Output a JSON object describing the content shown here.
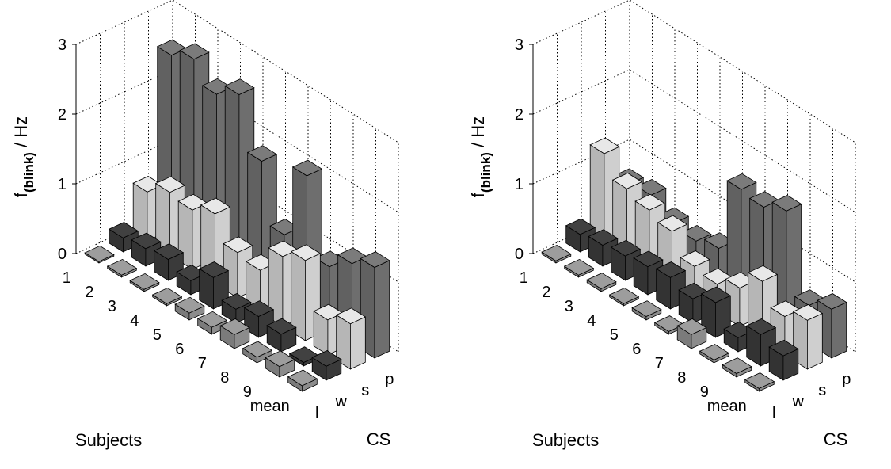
{
  "chart_data": [
    {
      "type": "bar3d",
      "zlabel_main": "f",
      "zlabel_sub": "(blink)",
      "zlabel_unit": " / Hz",
      "xlabel": "Subjects",
      "ylabel": "CS",
      "subjects": [
        "1",
        "2",
        "3",
        "4",
        "5",
        "6",
        "7",
        "8",
        "9",
        "mean"
      ],
      "zlim": [
        0,
        3
      ],
      "zticks": [
        "0",
        "1",
        "2",
        "3"
      ],
      "grid": true,
      "series": [
        {
          "name": "l",
          "color": "#8c8c8c",
          "values": [
            0.02,
            0.03,
            0.03,
            0.03,
            0.1,
            0.1,
            0.2,
            0.08,
            0.15,
            0.08
          ]
        },
        {
          "name": "w",
          "color": "#3a3a3a",
          "values": [
            0.2,
            0.25,
            0.3,
            0.2,
            0.45,
            0.2,
            0.3,
            0.25,
            0.05,
            0.2
          ]
        },
        {
          "name": "s",
          "color": "#cfcfcf",
          "values": [
            0.7,
            0.9,
            0.85,
            1.0,
            0.65,
            0.6,
            1.0,
            1.15,
            0.5,
            0.65
          ]
        },
        {
          "name": "p",
          "color": "#6e6e6e",
          "values": [
            2.5,
            2.65,
            2.35,
            2.55,
            1.8,
            0.95,
            2.0,
            0.9,
            1.15,
            1.3
          ]
        }
      ]
    },
    {
      "type": "bar3d",
      "zlabel_main": "f",
      "zlabel_sub": "(blink)",
      "zlabel_unit": " / Hz",
      "xlabel": "Subjects",
      "ylabel": "CS",
      "subjects": [
        "1",
        "2",
        "3",
        "4",
        "5",
        "6",
        "7",
        "8",
        "9",
        "mean"
      ],
      "zlim": [
        0,
        3
      ],
      "zticks": [
        "0",
        "1",
        "2",
        "3"
      ],
      "grid": true,
      "series": [
        {
          "name": "l",
          "color": "#8c8c8c",
          "values": [
            0.03,
            0.03,
            0.04,
            0.03,
            0.05,
            0.04,
            0.2,
            0.04,
            0.05,
            0.04
          ]
        },
        {
          "name": "w",
          "color": "#3a3a3a",
          "values": [
            0.25,
            0.3,
            0.35,
            0.4,
            0.45,
            0.35,
            0.5,
            0.2,
            0.45,
            0.35
          ]
        },
        {
          "name": "s",
          "color": "#cfcfcf",
          "values": [
            1.25,
            0.95,
            0.85,
            0.75,
            0.45,
            0.4,
            0.55,
            0.85,
            0.55,
            0.7
          ]
        },
        {
          "name": "p",
          "color": "#6e6e6e",
          "values": [
            0.65,
            0.7,
            0.5,
            0.45,
            0.55,
            1.6,
            1.55,
            1.7,
            0.55,
            0.7
          ]
        }
      ]
    }
  ]
}
